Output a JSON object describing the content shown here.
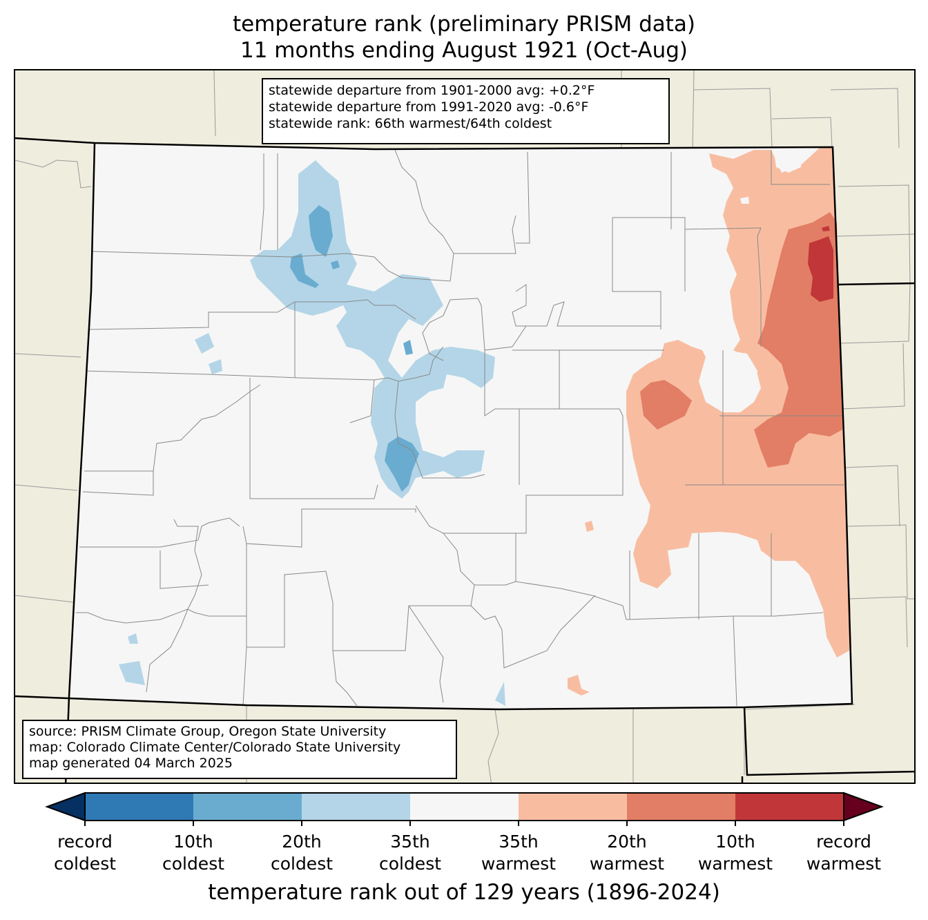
{
  "title": {
    "line1": "temperature rank (preliminary PRISM data)",
    "line2": "11 months ending August 1921 (Oct-Aug)"
  },
  "stats_box": {
    "line1": "statewide departure from 1901-2000 avg: +0.2°F",
    "line2": "statewide departure from 1991-2020 avg: -0.6°F",
    "line3": "statewide rank: 66th warmest/64th coldest"
  },
  "source_box": {
    "line1": "source: PRISM Climate Group, Oregon State University",
    "line2": "map: Colorado Climate Center/Colorado State University",
    "line3": "map generated 04 March 2025"
  },
  "colors": {
    "background_land": "#efedde",
    "state_fill": "#f5f5f5",
    "record_coldest": "#053061",
    "coldest_10": "#2f79b5",
    "coldest_20": "#6aacd0",
    "coldest_35": "#b3d5e7",
    "neutral": "#f6f6f6",
    "warmest_35": "#f8bda1",
    "warmest_20": "#e27e65",
    "warmest_10": "#c13639",
    "record_warmest": "#67001f"
  },
  "colorbar": {
    "tick_labels": [
      {
        "l1": "record",
        "l2": "coldest"
      },
      {
        "l1": "10th",
        "l2": "coldest"
      },
      {
        "l1": "20th",
        "l2": "coldest"
      },
      {
        "l1": "35th",
        "l2": "coldest"
      },
      {
        "l1": "35th",
        "l2": "warmest"
      },
      {
        "l1": "20th",
        "l2": "warmest"
      },
      {
        "l1": "10th",
        "l2": "warmest"
      },
      {
        "l1": "record",
        "l2": "warmest"
      }
    ],
    "axis_label": "temperature rank out of 129 years (1896-2024)"
  }
}
